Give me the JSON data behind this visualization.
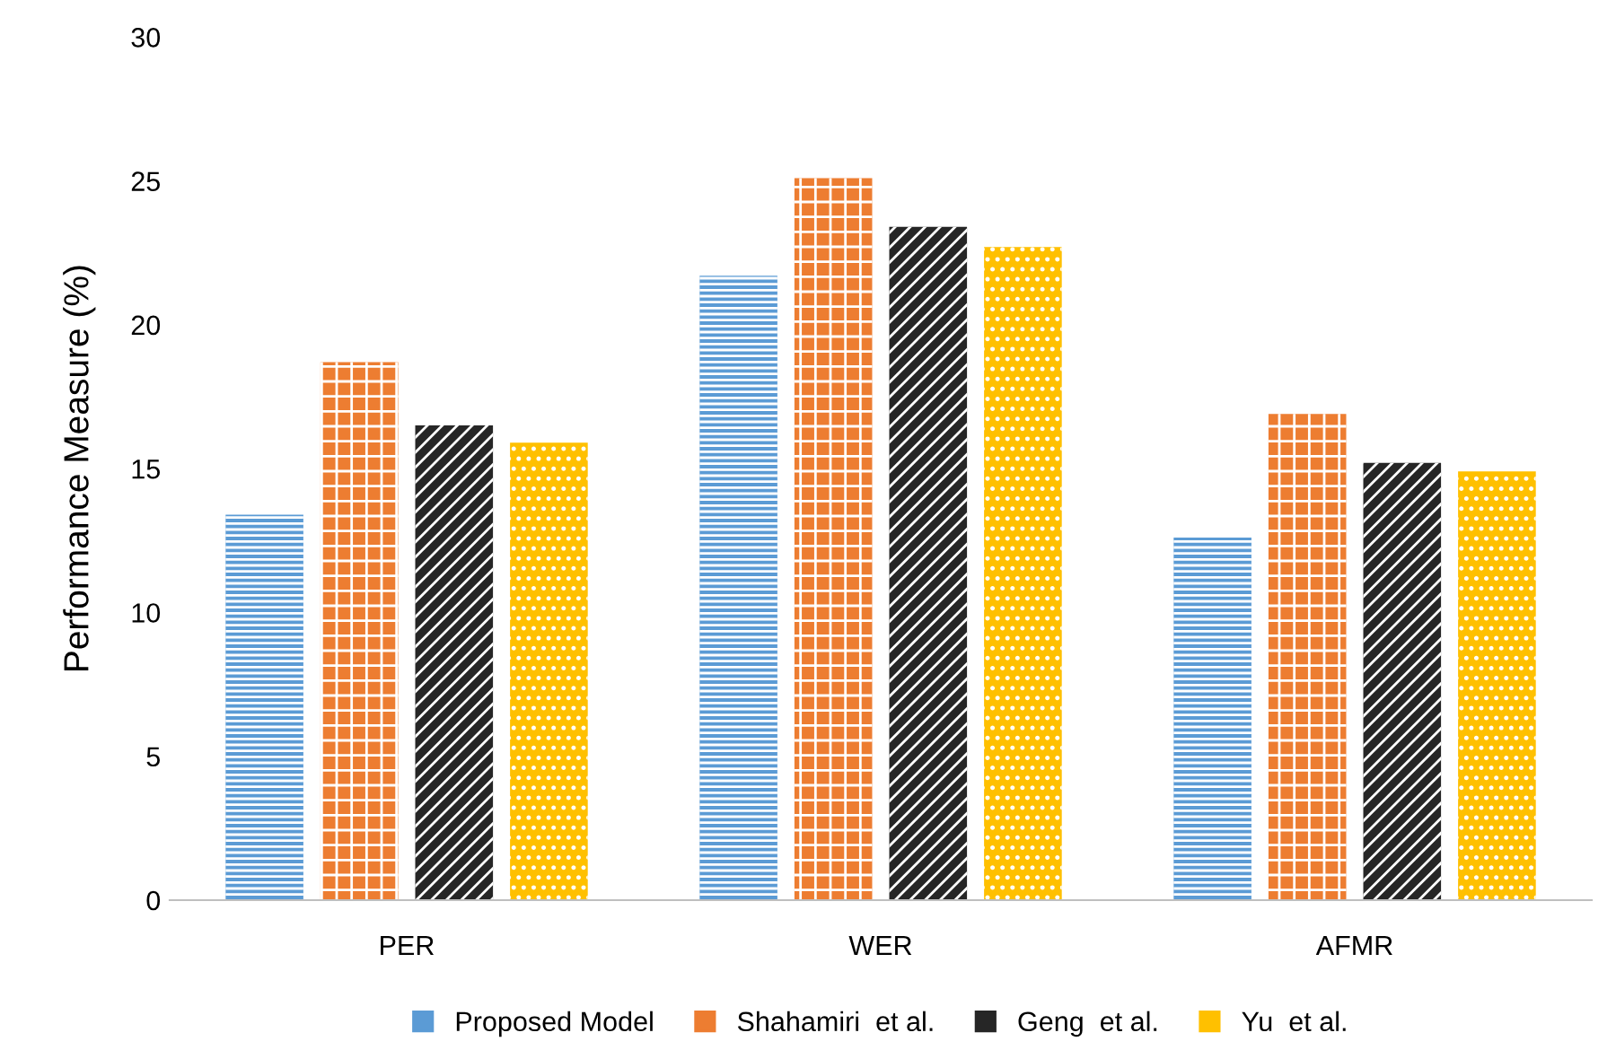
{
  "chart_data": {
    "type": "bar",
    "ylabel": "Performance Measure (%)",
    "categories": [
      "PER",
      "WER",
      "AFMR"
    ],
    "series": [
      {
        "name": "Proposed Model",
        "color": "#5b9bd5",
        "values": [
          13.4,
          21.7,
          12.6
        ]
      },
      {
        "name": "Shahamiri  et al.",
        "color": "#ed7d31",
        "values": [
          18.7,
          25.1,
          16.9
        ]
      },
      {
        "name": "Geng  et al.",
        "color": "#262626",
        "values": [
          16.5,
          23.4,
          15.2
        ]
      },
      {
        "name": "Yu  et al.",
        "color": "#ffc000",
        "values": [
          15.9,
          22.7,
          14.9
        ]
      }
    ],
    "ylim": [
      0,
      30
    ],
    "yticks": [
      0,
      5,
      10,
      15,
      20,
      25,
      30
    ],
    "grid": false,
    "legend": "bottom"
  }
}
